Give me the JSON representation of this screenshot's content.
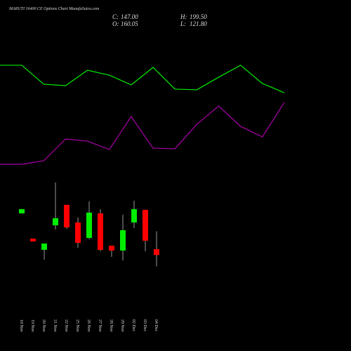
{
  "title": "MARUTI 16400 CE Options Chart MunafaSutra.com",
  "header": [
    {
      "key": "C:",
      "value": "147.00"
    },
    {
      "key": "H:",
      "value": "199.50"
    },
    {
      "key": "O:",
      "value": "160.05"
    },
    {
      "key": "L:",
      "value": "121.80"
    }
  ],
  "chart_data": [
    {
      "type": "line",
      "ylim": [
        0,
        100
      ],
      "series": [
        {
          "color": "#00ee00",
          "values": [
            92.4,
            92.4,
            76.5,
            75.3,
            88.2,
            84.1,
            75.9,
            90.6,
            72.4,
            71.8,
            82.4,
            92.4,
            77.1,
            69.4
          ]
        },
        {
          "color": "#aa00aa",
          "values": [
            9.4,
            9.4,
            12.4,
            30.6,
            28.8,
            21.8,
            49.4,
            22.9,
            22.4,
            42.9,
            58.2,
            41.2,
            32.4,
            61.2
          ]
        }
      ]
    },
    {
      "type": "candlestick",
      "ylim": [
        90,
        323
      ],
      "up_color": "#00ee00",
      "down_color": "#ff0000",
      "categories": [
        "18 Nov",
        "19 Nov",
        "20 Nov",
        "21 Nov",
        "22 Nov",
        "25 Nov",
        "26 Nov",
        "27 Nov",
        "28 Nov",
        "29 Nov",
        "02 Dec",
        "03 Dec",
        "04 Dec"
      ],
      "open": [
        239.3,
        183.4,
        158.5,
        212.9,
        258.0,
        219.1,
        184.9,
        239.3,
        167.8,
        157.0,
        219.1,
        247.1,
        160.05
      ],
      "high": [
        248.6,
        183.4,
        172.5,
        307.7,
        258.0,
        230.0,
        265.7,
        248.6,
        167.8,
        236.2,
        267.3,
        247.1,
        199.5
      ],
      "low": [
        239.3,
        177.1,
        136.7,
        203.6,
        205.1,
        163.2,
        181.8,
        155.4,
        143.0,
        135.2,
        206.7,
        155.4,
        121.8
      ],
      "close": [
        248.6,
        177.1,
        172.5,
        228.4,
        208.2,
        174.0,
        240.9,
        158.5,
        157.0,
        202.0,
        248.6,
        178.7,
        147.0
      ]
    }
  ]
}
